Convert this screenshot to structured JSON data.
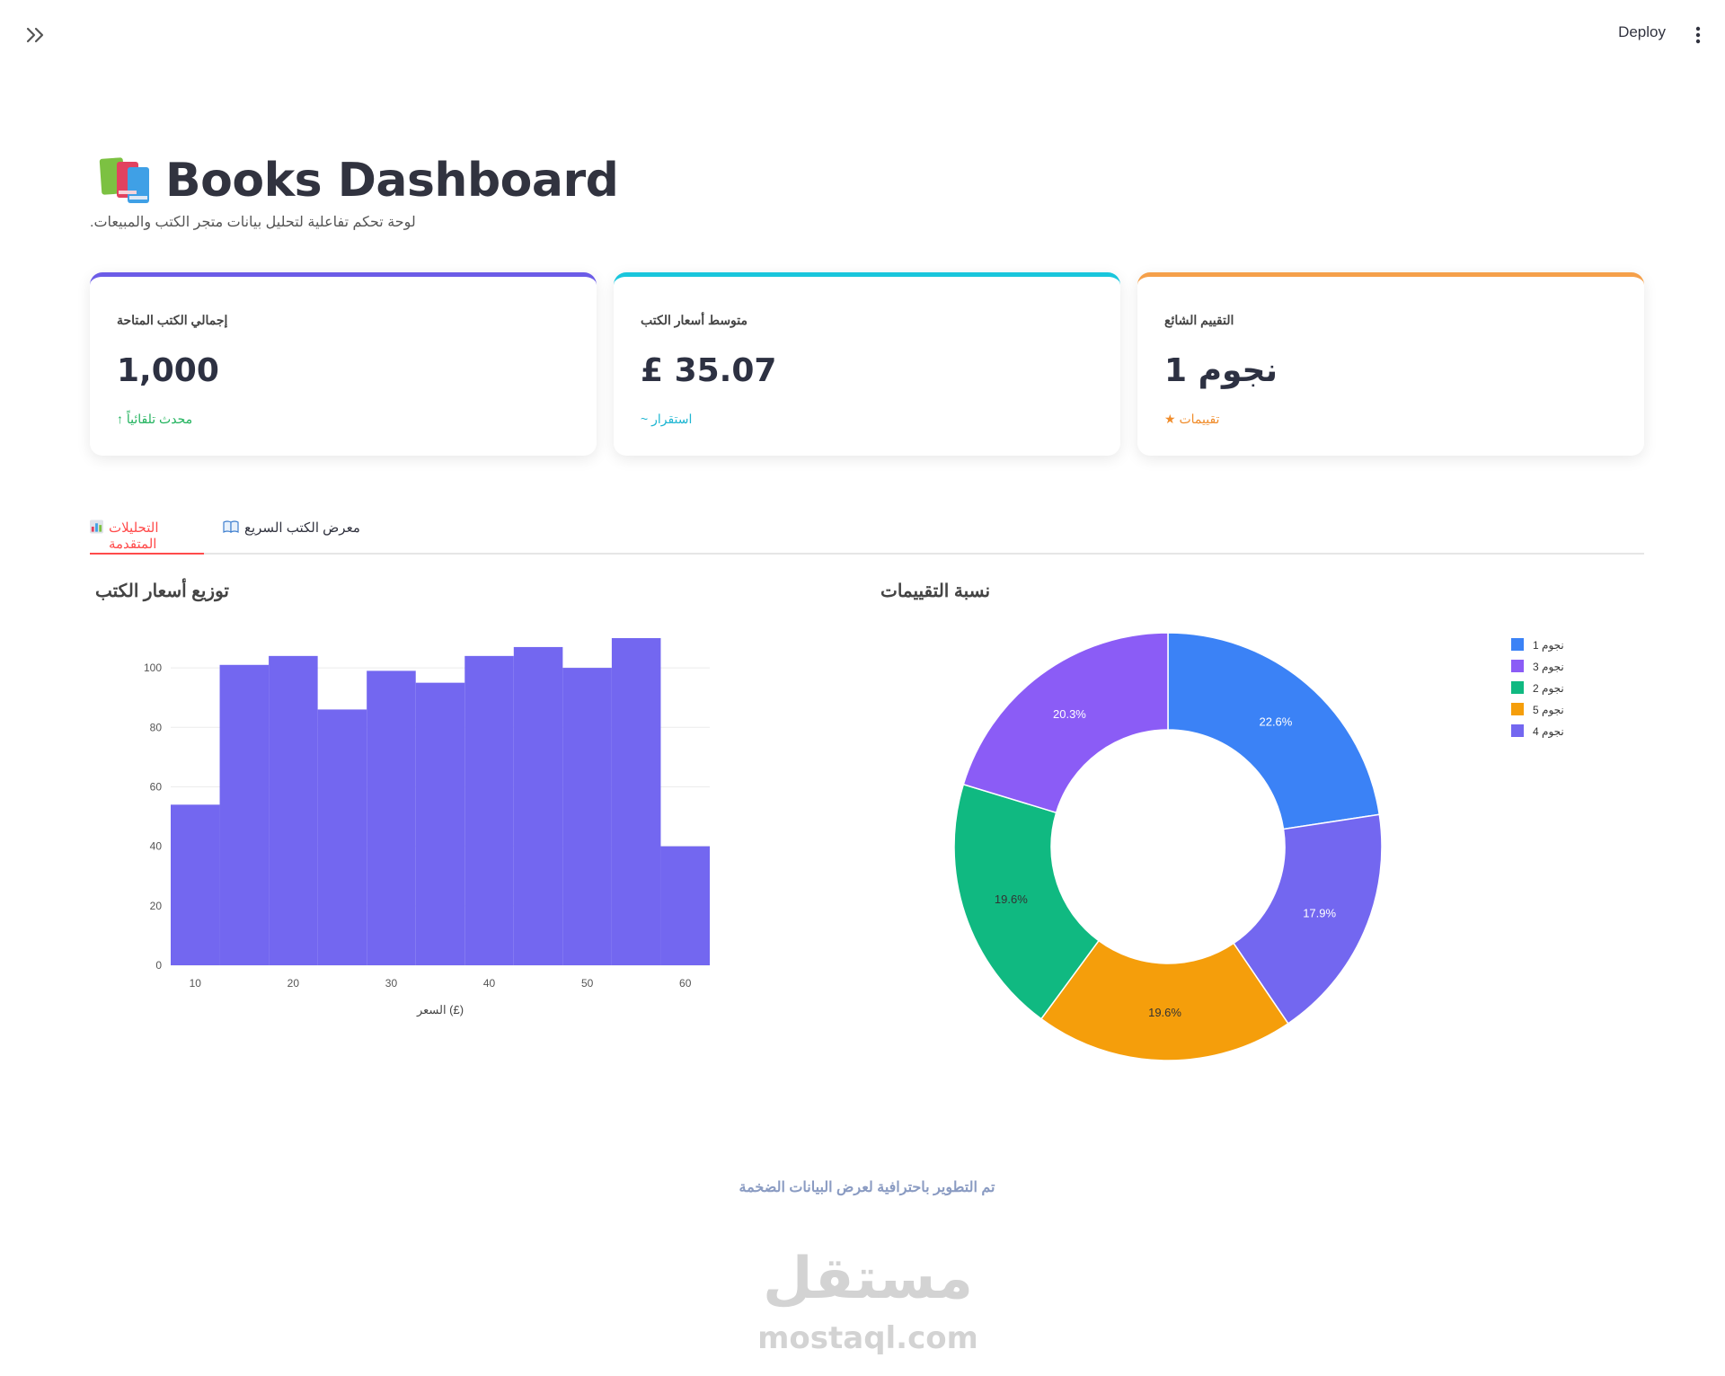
{
  "topbar": {
    "deploy_label": "Deploy"
  },
  "header": {
    "title": "Books Dashboard",
    "subtitle": ".لوحة تحكم تفاعلية لتحليل بيانات متجر الكتب والمبيعات"
  },
  "cards": [
    {
      "label": "إجمالي الكتب المتاحة",
      "value": "1,000",
      "note": "محدث تلقائياً",
      "note_icon": "arrow-up-icon",
      "accent": "#6c5ce7",
      "note_color": "#22b35e"
    },
    {
      "label": "متوسط أسعار الكتب",
      "value": "£ 35.07",
      "note": "استقرار",
      "note_icon": "tilde-icon",
      "accent": "#19c6dc",
      "note_color": "#1fb6d2"
    },
    {
      "label": "التقييم الشائع",
      "value": "نجوم 1",
      "note": "تقييمات",
      "note_icon": "star-icon",
      "accent": "#f5a04a",
      "note_color": "#f08c2b"
    }
  ],
  "tabs": [
    {
      "label": "التحليلات المتقدمة",
      "icon": "bar-chart-icon",
      "active": true
    },
    {
      "label": "معرض الكتب السريع",
      "icon": "open-book-icon",
      "active": false
    }
  ],
  "histogram_title": "توزيع أسعار الكتب",
  "pie_title": "نسبة التقييمات",
  "footer": {
    "note": "تم التطوير باحترافية لعرض البيانات الضخمة"
  },
  "watermark": {
    "arabic": "مستقل",
    "latin": "mostaql.com"
  },
  "chart_data": [
    {
      "type": "bar",
      "subtype": "histogram",
      "title": "توزيع أسعار الكتب",
      "xlabel": "السعر (£)",
      "ylabel": "",
      "bins": [
        {
          "x0": 7.5,
          "x1": 12.5,
          "count": 54
        },
        {
          "x0": 12.5,
          "x1": 17.5,
          "count": 101
        },
        {
          "x0": 17.5,
          "x1": 22.5,
          "count": 104
        },
        {
          "x0": 22.5,
          "x1": 27.5,
          "count": 86
        },
        {
          "x0": 27.5,
          "x1": 32.5,
          "count": 99
        },
        {
          "x0": 32.5,
          "x1": 37.5,
          "count": 95
        },
        {
          "x0": 37.5,
          "x1": 42.5,
          "count": 104
        },
        {
          "x0": 42.5,
          "x1": 47.5,
          "count": 107
        },
        {
          "x0": 47.5,
          "x1": 52.5,
          "count": 100
        },
        {
          "x0": 52.5,
          "x1": 57.5,
          "count": 110
        },
        {
          "x0": 57.5,
          "x1": 62.5,
          "count": 40
        }
      ],
      "xlim": [
        7.5,
        62.5
      ],
      "ylim": [
        0,
        110
      ],
      "xticks": [
        10,
        20,
        30,
        40,
        50,
        60
      ],
      "yticks": [
        0,
        20,
        40,
        60,
        80,
        100
      ],
      "grid": true,
      "color": "#7367f0"
    },
    {
      "type": "pie",
      "subtype": "donut",
      "title": "نسبة التقييمات",
      "legend_position": "top-right",
      "slices": [
        {
          "name": "نجوم 1",
          "value": 22.6,
          "label": "22.6%",
          "color": "#3b82f6"
        },
        {
          "name": "نجوم 4",
          "value": 17.9,
          "label": "17.9%",
          "color": "#7367f0"
        },
        {
          "name": "نجوم 5",
          "value": 19.6,
          "label": "19.6%",
          "color": "#f59e0b"
        },
        {
          "name": "نجوم 2",
          "value": 19.6,
          "label": "19.6%",
          "color": "#10b981"
        },
        {
          "name": "نجوم 3",
          "value": 20.3,
          "label": "20.3%",
          "color": "#8b5cf6"
        }
      ],
      "legend": [
        {
          "name": "نجوم 1",
          "color": "#3b82f6"
        },
        {
          "name": "نجوم 3",
          "color": "#8b5cf6"
        },
        {
          "name": "نجوم 2",
          "color": "#10b981"
        },
        {
          "name": "نجوم 5",
          "color": "#f59e0b"
        },
        {
          "name": "نجوم 4",
          "color": "#7367f0"
        }
      ]
    }
  ]
}
